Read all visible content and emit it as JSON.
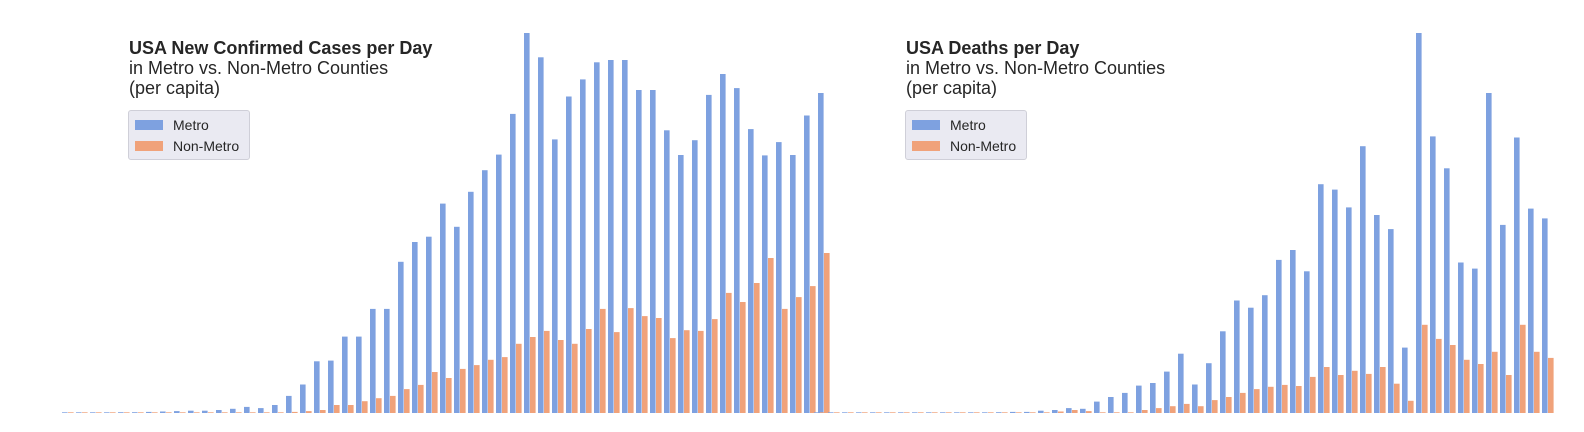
{
  "colors": {
    "metro": "#7ea1e0",
    "nonmetro": "#f0a27a"
  },
  "chart_data": [
    {
      "type": "bar",
      "title": "USA New Confirmed Cases per Day",
      "subtitle": [
        "in Metro vs. Non-Metro Counties",
        "(per capita)"
      ],
      "legend_position": "top-left",
      "grid": false,
      "ylim": [
        0,
        100
      ],
      "series": [
        {
          "name": "Metro",
          "color": "#7ea1e0",
          "values": [
            0,
            0,
            0,
            0,
            0.2,
            0.2,
            0.3,
            0.4,
            0.5,
            0.6,
            0.6,
            0.8,
            1.1,
            1.6,
            1.3,
            2.1,
            4.5,
            7.5,
            13.6,
            13.8,
            20.1,
            20.1,
            27.4,
            27.4,
            39.8,
            45.0,
            46.4,
            55.1,
            49.0,
            58.2,
            63.9,
            68.0,
            78.7,
            100,
            93.6,
            72.0,
            83.3,
            87.8,
            92.3,
            92.9,
            92.9,
            85.0,
            85.0,
            74.4,
            67.9,
            71.8,
            83.7,
            89.2,
            85.5,
            74.7,
            67.8,
            71.3,
            67.9,
            78.3,
            84.2
          ]
        },
        {
          "name": "Non-Metro",
          "color": "#f0a27a",
          "values": [
            0,
            0,
            0,
            0,
            0,
            0,
            0,
            0,
            0,
            0,
            0,
            0,
            0,
            0,
            0,
            0,
            0.3,
            0.5,
            0.8,
            2.1,
            2.1,
            3.1,
            3.9,
            4.5,
            6.3,
            7.4,
            10.8,
            9.2,
            11.6,
            12.6,
            14.0,
            14.7,
            18.2,
            20.0,
            21.6,
            19.2,
            18.2,
            22.1,
            27.4,
            21.3,
            27.6,
            25.5,
            25.0,
            19.7,
            21.8,
            21.6,
            24.7,
            31.6,
            29.2,
            34.2,
            40.8,
            27.4,
            30.5,
            33.4,
            42.1
          ]
        }
      ]
    },
    {
      "type": "bar",
      "title": "USA Deaths per Day",
      "subtitle": [
        "in Metro vs. Non-Metro Counties",
        "(per capita)"
      ],
      "legend_position": "top-left",
      "grid": false,
      "ylim": [
        0,
        100
      ],
      "series": [
        {
          "name": "Metro",
          "color": "#7ea1e0",
          "values": [
            0,
            0,
            0,
            0,
            0,
            0,
            0,
            0,
            0,
            0,
            0,
            0,
            0,
            0.2,
            0.3,
            0.3,
            0.6,
            0.8,
            1.3,
            1.1,
            3.0,
            4.2,
            5.3,
            7.2,
            7.9,
            10.9,
            15.6,
            7.5,
            13.1,
            21.5,
            29.6,
            27.7,
            31.0,
            40.3,
            42.9,
            37.3,
            60.2,
            58.8,
            54.1,
            70.2,
            52.1,
            48.4,
            17.2,
            100,
            72.8,
            64.4,
            39.6,
            38.0,
            84.2,
            49.5,
            72.5,
            53.8,
            51.2
          ]
        },
        {
          "name": "Non-Metro",
          "color": "#f0a27a",
          "values": [
            0,
            0,
            0,
            0,
            0,
            0,
            0,
            0,
            0,
            0,
            0,
            0,
            0,
            0,
            0,
            0,
            0,
            0.4,
            0.8,
            0.5,
            0,
            0,
            0,
            0.8,
            1.3,
            1.8,
            2.4,
            1.8,
            3.4,
            4.2,
            5.3,
            6.3,
            6.9,
            7.4,
            7.1,
            9.5,
            12.1,
            10.0,
            11.1,
            10.3,
            12.1,
            7.7,
            3.2,
            23.2,
            19.5,
            17.9,
            14.0,
            12.9,
            16.1,
            10.0,
            23.2,
            16.1,
            14.5
          ]
        }
      ]
    }
  ]
}
